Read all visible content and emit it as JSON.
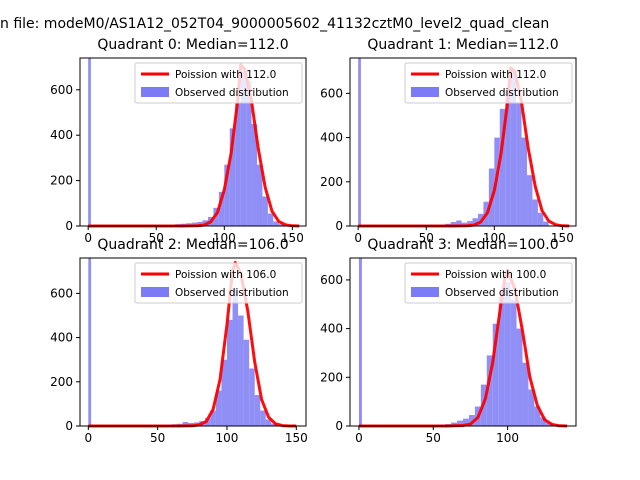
{
  "figure": {
    "suptitle": "n file: modeM0/AS1A12_052T04_9000005602_41132cztM0_level2_quad_clean"
  },
  "chart_data": [
    {
      "type": "bar",
      "title": "Quadrant 0: Median=112.0",
      "xlim": [
        -6,
        160
      ],
      "ylim": [
        0,
        740
      ],
      "xticks": [
        0,
        50,
        100,
        150
      ],
      "yticks": [
        0,
        200,
        400,
        600
      ],
      "grid": false,
      "legend_position": "top-right",
      "series": [
        {
          "name": "Poission with 112.0",
          "kind": "line",
          "color": "#ff0000",
          "median": 112.0,
          "x": [
            0,
            60,
            70,
            80,
            85,
            90,
            95,
            100,
            105,
            110,
            112,
            115,
            120,
            125,
            130,
            135,
            140,
            145,
            150,
            155
          ],
          "y": [
            0,
            0,
            0,
            1,
            4,
            18,
            60,
            160,
            320,
            560,
            710,
            690,
            550,
            340,
            170,
            65,
            20,
            5,
            1,
            0
          ]
        },
        {
          "name": "Observed distribution",
          "kind": "hist",
          "color": "#7b7bf5",
          "bins": [
            [
              0,
              2,
              760
            ],
            [
              60,
              64,
              5
            ],
            [
              64,
              68,
              8
            ],
            [
              68,
              72,
              10
            ],
            [
              72,
              76,
              12
            ],
            [
              76,
              80,
              15
            ],
            [
              80,
              84,
              18
            ],
            [
              84,
              88,
              25
            ],
            [
              88,
              92,
              40
            ],
            [
              92,
              96,
              80
            ],
            [
              96,
              100,
              150
            ],
            [
              100,
              104,
              270
            ],
            [
              104,
              108,
              430
            ],
            [
              108,
              112,
              540
            ],
            [
              112,
              116,
              680
            ],
            [
              116,
              120,
              640
            ],
            [
              120,
              124,
              450
            ],
            [
              124,
              128,
              270
            ],
            [
              128,
              132,
              130
            ],
            [
              132,
              136,
              55
            ],
            [
              136,
              140,
              20
            ],
            [
              140,
              144,
              8
            ]
          ]
        }
      ]
    },
    {
      "type": "bar",
      "title": "Quadrant 1: Median=112.0",
      "xlim": [
        -6,
        160
      ],
      "ylim": [
        0,
        760
      ],
      "xticks": [
        0,
        50,
        100,
        150
      ],
      "yticks": [
        0,
        200,
        400,
        600
      ],
      "grid": false,
      "legend_position": "top-right",
      "series": [
        {
          "name": "Poission with 112.0",
          "kind": "line",
          "color": "#ff0000",
          "median": 112.0,
          "x": [
            0,
            60,
            70,
            80,
            85,
            90,
            95,
            100,
            105,
            110,
            112,
            115,
            120,
            125,
            130,
            135,
            140,
            145,
            150,
            155
          ],
          "y": [
            0,
            0,
            0,
            1,
            4,
            18,
            60,
            160,
            330,
            570,
            715,
            700,
            560,
            350,
            180,
            70,
            22,
            6,
            1,
            0
          ]
        },
        {
          "name": "Observed distribution",
          "kind": "hist",
          "color": "#7b7bf5",
          "bins": [
            [
              0,
              2,
              780
            ],
            [
              60,
              64,
              6
            ],
            [
              64,
              68,
              10
            ],
            [
              68,
              72,
              18
            ],
            [
              72,
              76,
              25
            ],
            [
              76,
              80,
              15
            ],
            [
              80,
              84,
              22
            ],
            [
              84,
              88,
              35
            ],
            [
              88,
              92,
              55
            ],
            [
              92,
              96,
              110
            ],
            [
              96,
              100,
              260
            ],
            [
              100,
              104,
              400
            ],
            [
              104,
              108,
              530
            ],
            [
              108,
              112,
              610
            ],
            [
              112,
              116,
              700
            ],
            [
              116,
              120,
              560
            ],
            [
              120,
              124,
              400
            ],
            [
              124,
              128,
              230
            ],
            [
              128,
              132,
              120
            ],
            [
              132,
              136,
              60
            ],
            [
              136,
              140,
              20
            ]
          ]
        }
      ]
    },
    {
      "type": "bar",
      "title": "Quadrant 2: Median=106.0",
      "xlim": [
        -6,
        157
      ],
      "ylim": [
        0,
        760
      ],
      "xticks": [
        0,
        50,
        100,
        150
      ],
      "yticks": [
        0,
        200,
        400,
        600
      ],
      "grid": false,
      "legend_position": "top-right",
      "series": [
        {
          "name": "Poission with 106.0",
          "kind": "line",
          "color": "#ff0000",
          "median": 106.0,
          "x": [
            0,
            55,
            65,
            75,
            80,
            85,
            90,
            95,
            100,
            104,
            106,
            110,
            115,
            120,
            125,
            130,
            135,
            140,
            145,
            150
          ],
          "y": [
            0,
            0,
            0,
            1,
            5,
            20,
            75,
            210,
            460,
            700,
            740,
            690,
            520,
            290,
            120,
            40,
            10,
            2,
            0,
            0
          ]
        },
        {
          "name": "Observed distribution",
          "kind": "hist",
          "color": "#7b7bf5",
          "bins": [
            [
              0,
              2,
              780
            ],
            [
              56,
              60,
              5
            ],
            [
              60,
              64,
              8
            ],
            [
              64,
              68,
              10
            ],
            [
              68,
              72,
              18
            ],
            [
              72,
              76,
              14
            ],
            [
              76,
              80,
              16
            ],
            [
              80,
              84,
              22
            ],
            [
              84,
              88,
              35
            ],
            [
              88,
              92,
              70
            ],
            [
              92,
              96,
              160
            ],
            [
              96,
              100,
              300
            ],
            [
              100,
              104,
              480
            ],
            [
              104,
              108,
              620
            ],
            [
              108,
              112,
              500
            ],
            [
              112,
              116,
              390
            ],
            [
              116,
              120,
              260
            ],
            [
              120,
              124,
              140
            ],
            [
              124,
              128,
              70
            ],
            [
              128,
              132,
              30
            ],
            [
              132,
              136,
              10
            ]
          ]
        }
      ]
    },
    {
      "type": "bar",
      "title": "Quadrant 3: Median=100.0",
      "xlim": [
        -6,
        146
      ],
      "ylim": [
        0,
        690
      ],
      "xticks": [
        0,
        50,
        100
      ],
      "yticks": [
        0,
        200,
        400,
        600
      ],
      "grid": false,
      "legend_position": "top-right",
      "series": [
        {
          "name": "Poission with 100.0",
          "kind": "line",
          "color": "#ff0000",
          "median": 100.0,
          "x": [
            0,
            50,
            60,
            70,
            75,
            80,
            85,
            90,
            95,
            98,
            100,
            105,
            110,
            115,
            120,
            125,
            130,
            135,
            140
          ],
          "y": [
            0,
            0,
            0,
            2,
            8,
            35,
            110,
            260,
            480,
            600,
            640,
            560,
            390,
            200,
            85,
            25,
            6,
            1,
            0
          ]
        },
        {
          "name": "Observed distribution",
          "kind": "hist",
          "color": "#7b7bf5",
          "bins": [
            [
              0,
              2,
              700
            ],
            [
              50,
              54,
              5
            ],
            [
              54,
              58,
              6
            ],
            [
              58,
              62,
              8
            ],
            [
              62,
              66,
              14
            ],
            [
              66,
              70,
              22
            ],
            [
              70,
              74,
              30
            ],
            [
              74,
              78,
              45
            ],
            [
              78,
              82,
              80
            ],
            [
              82,
              86,
              170
            ],
            [
              86,
              90,
              290
            ],
            [
              90,
              94,
              420
            ],
            [
              94,
              98,
              530
            ],
            [
              98,
              102,
              590
            ],
            [
              102,
              106,
              520
            ],
            [
              106,
              110,
              400
            ],
            [
              110,
              114,
              260
            ],
            [
              114,
              118,
              150
            ],
            [
              118,
              122,
              80
            ],
            [
              122,
              126,
              35
            ],
            [
              126,
              130,
              14
            ],
            [
              130,
              134,
              5
            ]
          ]
        }
      ]
    }
  ]
}
